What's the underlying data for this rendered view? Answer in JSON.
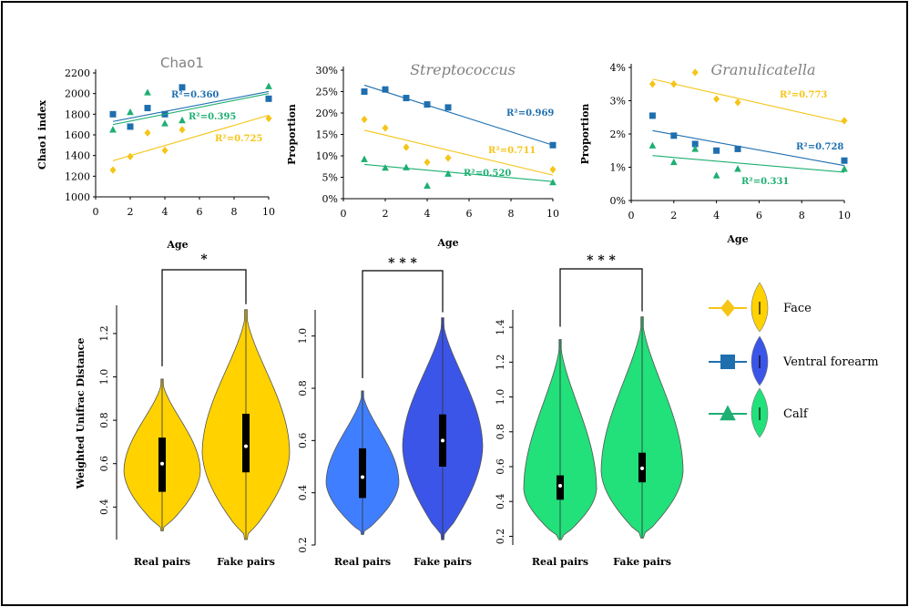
{
  "colors": {
    "face": "#F5C518",
    "forearm": "#1F6FAF",
    "calf": "#1EAF72",
    "violin_face": "#FFD200",
    "violin_forearm_real": "#3F7FFF",
    "violin_forearm_fake": "#3B55E8",
    "violin_calf": "#22E07A"
  },
  "legend": [
    {
      "label": "Face",
      "marker": "diamond",
      "color": "#F5C518"
    },
    {
      "label": "Ventral forearm",
      "marker": "square",
      "color": "#1F6FAF"
    },
    {
      "label": "Calf",
      "marker": "triangle",
      "color": "#1EAF72"
    }
  ],
  "chart_data": [
    {
      "type": "scatter",
      "title": "Chao1",
      "title_style": "plain",
      "xlabel": "Age",
      "ylabel": "Chao1 index",
      "xlim": [
        0,
        10
      ],
      "ylim": [
        1000,
        2200
      ],
      "xticks": [
        "0",
        "2",
        "4",
        "6",
        "8",
        "10"
      ],
      "yticks": [
        "1000",
        "1200",
        "1400",
        "1600",
        "1800",
        "2000",
        "2200"
      ],
      "series": [
        {
          "key": "forearm",
          "marker": "square",
          "x": [
            1,
            2,
            3,
            4,
            5,
            10
          ],
          "y": [
            1800,
            1680,
            1860,
            1800,
            2060,
            1950
          ],
          "trend": [
            1730,
            2020
          ],
          "r2": "R²=0.360"
        },
        {
          "key": "calf",
          "marker": "triangle",
          "x": [
            1,
            2,
            3,
            4,
            5,
            10
          ],
          "y": [
            1650,
            1820,
            2010,
            1710,
            1740,
            2070
          ],
          "trend": [
            1700,
            2000
          ],
          "r2": "R²=0.395"
        },
        {
          "key": "face",
          "marker": "diamond",
          "x": [
            1,
            2,
            3,
            4,
            5,
            10
          ],
          "y": [
            1260,
            1390,
            1620,
            1450,
            1650,
            1760
          ],
          "trend": [
            1350,
            1790
          ],
          "r2": "R²=0.725"
        }
      ]
    },
    {
      "type": "scatter",
      "title": "Streptococcus",
      "title_style": "italic",
      "xlabel": "Age",
      "ylabel": "Proportion",
      "xlim": [
        0,
        10
      ],
      "ylim": [
        0,
        30
      ],
      "xticks": [
        "0",
        "2",
        "4",
        "6",
        "8",
        "10"
      ],
      "yticks": [
        "0%",
        "5%",
        "10%",
        "15%",
        "20%",
        "25%",
        "30%"
      ],
      "series": [
        {
          "key": "forearm",
          "marker": "square",
          "x": [
            1,
            2,
            3,
            4,
            5,
            10
          ],
          "y": [
            25,
            25.5,
            23.5,
            22,
            21.3,
            12.5
          ],
          "trend": [
            26.5,
            12.5
          ],
          "r2": "R²=0.969"
        },
        {
          "key": "face",
          "marker": "diamond",
          "x": [
            1,
            2,
            3,
            4,
            5,
            10
          ],
          "y": [
            18.5,
            16.5,
            12,
            8.5,
            9.5,
            6.8
          ],
          "trend": [
            16,
            5.5
          ],
          "r2": "R²=0.711"
        },
        {
          "key": "calf",
          "marker": "triangle",
          "x": [
            1,
            2,
            3,
            4,
            5,
            10
          ],
          "y": [
            9.2,
            7.2,
            7.3,
            3,
            5.8,
            3.8
          ],
          "trend": [
            8,
            4
          ],
          "r2": "R²=0.520"
        }
      ]
    },
    {
      "type": "scatter",
      "title": "Granulicatella",
      "title_style": "italic",
      "xlabel": "Age",
      "ylabel": "Proportion",
      "xlim": [
        0,
        10
      ],
      "ylim": [
        0,
        4
      ],
      "xticks": [
        "0",
        "2",
        "4",
        "6",
        "8",
        "10"
      ],
      "yticks": [
        "0%",
        "1%",
        "2%",
        "3%",
        "4%"
      ],
      "series": [
        {
          "key": "face",
          "marker": "diamond",
          "x": [
            1,
            2,
            3,
            4,
            5,
            10
          ],
          "y": [
            3.5,
            3.5,
            3.85,
            3.05,
            2.95,
            2.4
          ],
          "trend": [
            3.65,
            2.35
          ],
          "r2": "R²=0.773"
        },
        {
          "key": "forearm",
          "marker": "square",
          "x": [
            1,
            2,
            3,
            4,
            5,
            10
          ],
          "y": [
            2.55,
            1.95,
            1.7,
            1.5,
            1.55,
            1.2
          ],
          "trend": [
            2.1,
            1.05
          ],
          "r2": "R²=0.728"
        },
        {
          "key": "calf",
          "marker": "triangle",
          "x": [
            1,
            2,
            3,
            4,
            5,
            10
          ],
          "y": [
            1.65,
            1.15,
            1.55,
            0.75,
            0.95,
            0.95
          ],
          "trend": [
            1.35,
            0.85
          ],
          "r2": "R²=0.331"
        }
      ]
    },
    {
      "type": "violin",
      "ylabel": "Weighted Unifrac Distance",
      "key": "face",
      "categories": [
        "Real pairs",
        "Fake pairs"
      ],
      "ylim": [
        0.25,
        1.33
      ],
      "yticks": [
        0.4,
        0.6,
        0.8,
        1.0,
        1.2
      ],
      "ytick_labels": [
        "0.4",
        "0.6",
        "0.8",
        "1.0",
        "1.2"
      ],
      "significance": "*",
      "groups": [
        {
          "name": "Real pairs",
          "min": 0.29,
          "max": 0.99,
          "q1": 0.47,
          "median": 0.6,
          "q3": 0.72
        },
        {
          "name": "Fake pairs",
          "min": 0.25,
          "max": 1.31,
          "q1": 0.56,
          "median": 0.68,
          "q3": 0.83
        }
      ]
    },
    {
      "type": "violin",
      "ylabel": "",
      "key": "forearm",
      "categories": [
        "Real pairs",
        "Fake pairs"
      ],
      "ylim": [
        0.2,
        1.1
      ],
      "yticks": [
        0.2,
        0.4,
        0.6,
        0.8,
        1.0
      ],
      "ytick_labels": [
        "0.2",
        "0.4",
        "0.6",
        "0.8",
        "1.0"
      ],
      "significance": "* * *",
      "groups": [
        {
          "name": "Real pairs",
          "min": 0.24,
          "max": 0.79,
          "q1": 0.38,
          "median": 0.46,
          "q3": 0.57
        },
        {
          "name": "Fake pairs",
          "min": 0.22,
          "max": 1.07,
          "q1": 0.5,
          "median": 0.6,
          "q3": 0.7
        }
      ]
    },
    {
      "type": "violin",
      "ylabel": "",
      "key": "calf",
      "categories": [
        "Real pairs",
        "Fake pairs"
      ],
      "ylim": [
        0.15,
        1.5
      ],
      "yticks": [
        0.2,
        0.4,
        0.6,
        0.8,
        1.0,
        1.2,
        1.4
      ],
      "ytick_labels": [
        "0.2",
        "0.4",
        "0.6",
        "0.8",
        "1.0",
        "1.2",
        "1.4"
      ],
      "significance": "* * *",
      "groups": [
        {
          "name": "Real pairs",
          "min": 0.18,
          "max": 1.33,
          "q1": 0.41,
          "median": 0.49,
          "q3": 0.55
        },
        {
          "name": "Fake pairs",
          "min": 0.19,
          "max": 1.46,
          "q1": 0.51,
          "median": 0.59,
          "q3": 0.68
        }
      ]
    }
  ]
}
